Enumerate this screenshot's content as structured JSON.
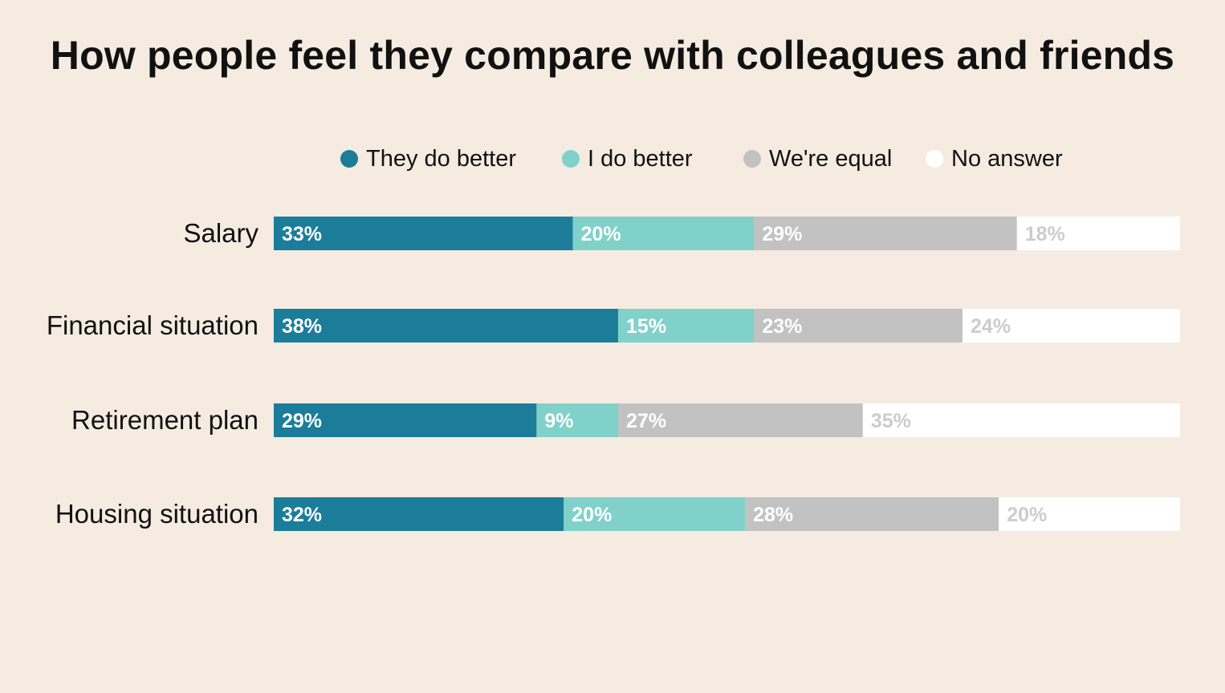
{
  "chart_data": {
    "type": "bar",
    "orientation": "horizontal",
    "stacked": true,
    "title": "How people feel they compare with colleagues and friends",
    "categories": [
      "Salary",
      "Financial situation",
      "Retirement plan",
      "Housing situation"
    ],
    "series": [
      {
        "name": "They do better",
        "color": "#1b7d9a",
        "label_color": "#ffffff",
        "values": [
          33,
          38,
          29,
          32
        ],
        "labels": [
          "33%",
          "38%",
          "29%",
          "32%"
        ]
      },
      {
        "name": "I do better",
        "color": "#80d1ca",
        "label_color": "#ffffff",
        "values": [
          20,
          15,
          9,
          20
        ],
        "labels": [
          "20%",
          "15%",
          "9%",
          "20%"
        ]
      },
      {
        "name": "We're equal",
        "color": "#c2c2c2",
        "label_color": "#ffffff",
        "values": [
          29,
          23,
          27,
          28
        ],
        "labels": [
          "29%",
          "23%",
          "27%",
          "28%"
        ]
      },
      {
        "name": "No answer",
        "color": "#ffffff",
        "label_color": "#cccccc",
        "values": [
          18,
          24,
          35,
          20
        ],
        "labels": [
          "18%",
          "24%",
          "35%",
          "20%"
        ]
      }
    ],
    "xlim": [
      0,
      100
    ],
    "legend_position": "top",
    "grid": false
  }
}
